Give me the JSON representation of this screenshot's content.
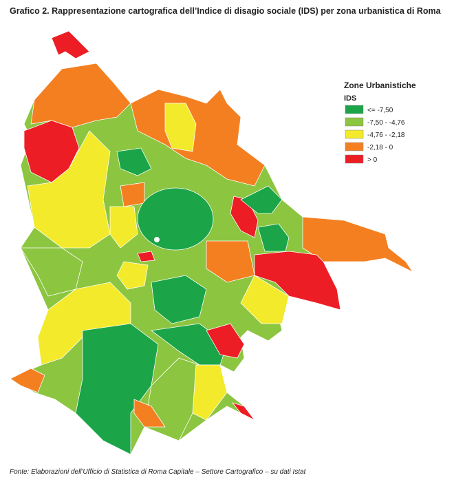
{
  "header": {
    "title": "Grafico 2. Rappresentazione cartografica dell’Indice di disagio sociale (IDS) per zona urbanistica di Roma"
  },
  "legend": {
    "title": "Zone Urbanistiche",
    "subtitle": "IDS",
    "items": [
      {
        "label": "<= -7,50",
        "color": "#1ba548"
      },
      {
        "label": "-7,50 - -4,76",
        "color": "#8cc540"
      },
      {
        "label": "-4,76 - -2,18",
        "color": "#f3ea2b"
      },
      {
        "label": "-2,18 - 0",
        "color": "#f47f20"
      },
      {
        "label": "> 0",
        "color": "#ec1d25"
      }
    ]
  },
  "footer": {
    "source": "Fonte: Elaborazioni dell'Ufficio di Statistica di Roma Capitale – Settore Cartografico – su dati Istat"
  }
}
